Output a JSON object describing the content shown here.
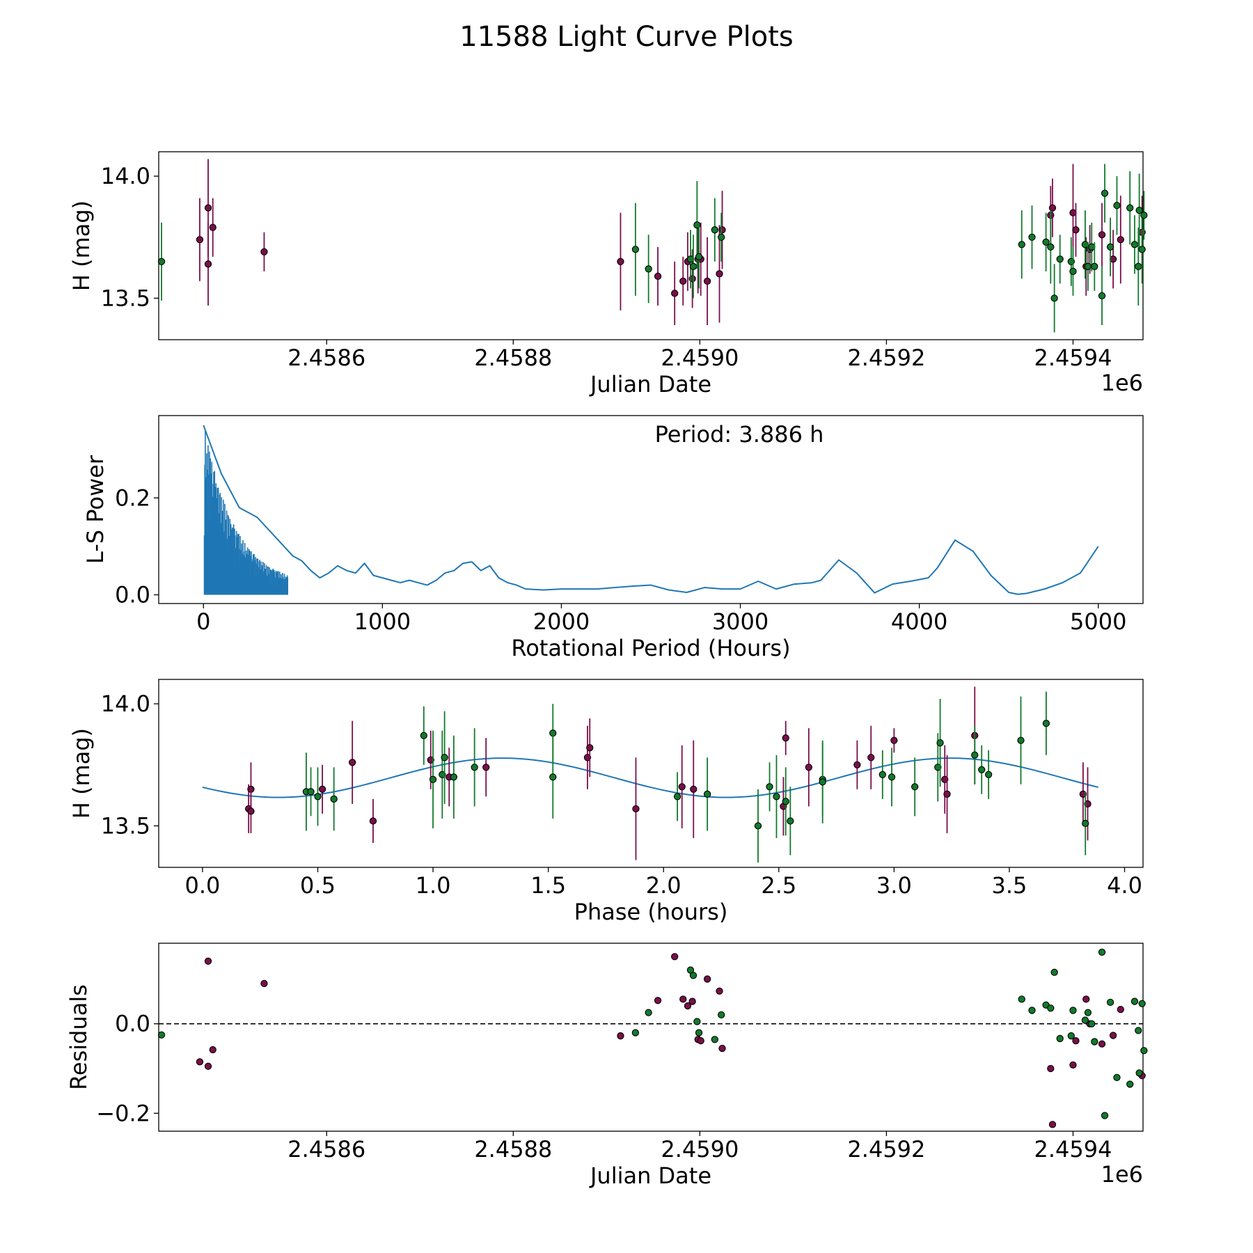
{
  "figure": {
    "suptitle": "11588 Light Curve Plots"
  },
  "colors": {
    "maroon": "#7a0e4a",
    "green": "#127a2c",
    "line": "#1f77b4",
    "edge": "#000000"
  },
  "chart_data": [
    {
      "type": "scatter",
      "id": "light-curve",
      "title": "",
      "xlabel": "Julian Date",
      "ylabel": "H (mag)",
      "offset_label": "1e6",
      "xlim": [
        2458420,
        2459475
      ],
      "ylim": [
        13.33,
        14.1
      ],
      "xticks": [
        2458600,
        2458800,
        2459000,
        2459200,
        2459400
      ],
      "xtick_labels": [
        "2.4586",
        "2.4588",
        "2.4590",
        "2.4592",
        "2.4594"
      ],
      "yticks": [
        13.5,
        14.0
      ],
      "ytick_labels": [
        "13.5",
        "14.0"
      ],
      "series": [
        {
          "name": "maroon",
          "color": "maroon",
          "points": [
            [
              2458464,
              13.74,
              0.17
            ],
            [
              2458473,
              13.87,
              0.2
            ],
            [
              2458473,
              13.64,
              0.17
            ],
            [
              2458478,
              13.79,
              0.12
            ],
            [
              2458533,
              13.69,
              0.08
            ],
            [
              2458915,
              13.65,
              0.2
            ],
            [
              2458955,
              13.59,
              0.12
            ],
            [
              2458973,
              13.52,
              0.13
            ],
            [
              2458982,
              13.57,
              0.1
            ],
            [
              2458987,
              13.65,
              0.12
            ],
            [
              2458992,
              13.58,
              0.12
            ],
            [
              2458998,
              13.66,
              0.14
            ],
            [
              2459001,
              13.66,
              0.15
            ],
            [
              2459008,
              13.57,
              0.18
            ],
            [
              2459021,
              13.6,
              0.2
            ],
            [
              2459024,
              13.78,
              0.16
            ],
            [
              2459376,
              13.84,
              0.12
            ],
            [
              2459378,
              13.87,
              0.12
            ],
            [
              2459400,
              13.85,
              0.2
            ],
            [
              2459403,
              13.78,
              0.11
            ],
            [
              2459414,
              13.63,
              0.12
            ],
            [
              2459418,
              13.7,
              0.1
            ],
            [
              2459431,
              13.76,
              0.13
            ],
            [
              2459443,
              13.66,
              0.12
            ],
            [
              2459451,
              13.74,
              0.18
            ],
            [
              2459474,
              13.77,
              0.15
            ]
          ]
        },
        {
          "name": "green",
          "color": "green",
          "points": [
            [
              2458423,
              13.65,
              0.16
            ],
            [
              2458931,
              13.7,
              0.19
            ],
            [
              2458945,
              13.62,
              0.14
            ],
            [
              2458990,
              13.66,
              0.12
            ],
            [
              2458993,
              13.63,
              0.13
            ],
            [
              2458997,
              13.8,
              0.18
            ],
            [
              2458999,
              13.67,
              0.13
            ],
            [
              2459016,
              13.78,
              0.13
            ],
            [
              2459023,
              13.75,
              0.1
            ],
            [
              2459345,
              13.72,
              0.14
            ],
            [
              2459356,
              13.75,
              0.13
            ],
            [
              2459371,
              13.73,
              0.12
            ],
            [
              2459376,
              13.71,
              0.15
            ],
            [
              2459380,
              13.5,
              0.14
            ],
            [
              2459386,
              13.66,
              0.1
            ],
            [
              2459398,
              13.65,
              0.1
            ],
            [
              2459400,
              13.61,
              0.1
            ],
            [
              2459413,
              13.72,
              0.14
            ],
            [
              2459416,
              13.63,
              0.1
            ],
            [
              2459420,
              13.71,
              0.1
            ],
            [
              2459423,
              13.63,
              0.1
            ],
            [
              2459431,
              13.51,
              0.12
            ],
            [
              2459434,
              13.93,
              0.12
            ],
            [
              2459440,
              13.71,
              0.12
            ],
            [
              2459447,
              13.88,
              0.12
            ],
            [
              2459461,
              13.87,
              0.15
            ],
            [
              2459466,
              13.72,
              0.12
            ],
            [
              2459470,
              13.63,
              0.16
            ],
            [
              2459471,
              13.86,
              0.15
            ],
            [
              2459474,
              13.7,
              0.14
            ],
            [
              2459476,
              13.84,
              0.1
            ]
          ]
        }
      ]
    },
    {
      "type": "line",
      "id": "periodogram",
      "title": "",
      "xlabel": "Rotational Period (Hours)",
      "ylabel": "L-S Power",
      "annotation": "Period: 3.886 h",
      "xlim": [
        -250,
        5250
      ],
      "ylim": [
        -0.018,
        0.37
      ],
      "xticks": [
        0,
        1000,
        2000,
        3000,
        4000,
        5000
      ],
      "xtick_labels": [
        "0",
        "1000",
        "2000",
        "3000",
        "4000",
        "5000"
      ],
      "yticks": [
        0.0,
        0.2
      ],
      "ytick_labels": [
        "0.0",
        "0.2"
      ],
      "x": [
        0,
        100,
        200,
        300,
        400,
        500,
        550,
        600,
        650,
        700,
        750,
        800,
        850,
        900,
        950,
        1000,
        1050,
        1100,
        1150,
        1200,
        1250,
        1300,
        1350,
        1400,
        1450,
        1500,
        1550,
        1600,
        1650,
        1700,
        1750,
        1800,
        1900,
        2000,
        2100,
        2200,
        2300,
        2400,
        2500,
        2600,
        2700,
        2800,
        2900,
        3000,
        3100,
        3200,
        3300,
        3400,
        3450,
        3550,
        3650,
        3750,
        3850,
        3950,
        4050,
        4100,
        4200,
        4300,
        4400,
        4500,
        4550,
        4600,
        4700,
        4800,
        4900,
        5000
      ],
      "y": [
        0.35,
        0.25,
        0.18,
        0.16,
        0.12,
        0.08,
        0.07,
        0.05,
        0.035,
        0.045,
        0.06,
        0.05,
        0.045,
        0.065,
        0.04,
        0.035,
        0.03,
        0.025,
        0.03,
        0.025,
        0.02,
        0.03,
        0.045,
        0.05,
        0.065,
        0.068,
        0.05,
        0.06,
        0.035,
        0.025,
        0.02,
        0.012,
        0.01,
        0.012,
        0.012,
        0.012,
        0.015,
        0.018,
        0.02,
        0.01,
        0.005,
        0.015,
        0.012,
        0.012,
        0.028,
        0.012,
        0.022,
        0.025,
        0.03,
        0.072,
        0.045,
        0.004,
        0.022,
        0.028,
        0.035,
        0.055,
        0.113,
        0.09,
        0.04,
        0.005,
        0.001,
        0.003,
        0.012,
        0.025,
        0.045,
        0.1
      ]
    },
    {
      "type": "scatter",
      "id": "phase-fold",
      "title": "",
      "xlabel": "Phase (hours)",
      "ylabel": "H (mag)",
      "xlim": [
        -0.19,
        4.08
      ],
      "ylim": [
        13.33,
        14.1
      ],
      "xticks": [
        0.0,
        0.5,
        1.0,
        1.5,
        2.0,
        2.5,
        3.0,
        3.5,
        4.0
      ],
      "xtick_labels": [
        "0.0",
        "0.5",
        "1.0",
        "1.5",
        "2.0",
        "2.5",
        "3.0",
        "3.5",
        "4.0"
      ],
      "yticks": [
        13.5,
        14.0
      ],
      "ytick_labels": [
        "13.5",
        "14.0"
      ],
      "model": {
        "mean": 13.697,
        "amp": 0.0805,
        "period": 3.886,
        "x0": 0.33
      },
      "series": [
        {
          "name": "maroon",
          "color": "maroon",
          "points": [
            [
              0.2,
              13.57,
              0.1
            ],
            [
              0.21,
              13.65,
              0.11
            ],
            [
              0.21,
              13.56,
              0.09
            ],
            [
              0.52,
              13.65,
              0.1
            ],
            [
              0.65,
              13.76,
              0.17
            ],
            [
              0.74,
              13.52,
              0.09
            ],
            [
              0.99,
              13.77,
              0.12
            ],
            [
              1.07,
              13.7,
              0.12
            ],
            [
              1.23,
              13.74,
              0.12
            ],
            [
              1.67,
              13.78,
              0.13
            ],
            [
              1.68,
              13.82,
              0.12
            ],
            [
              1.88,
              13.57,
              0.21
            ],
            [
              2.08,
              13.66,
              0.17
            ],
            [
              2.13,
              13.65,
              0.2
            ],
            [
              2.52,
              13.58,
              0.12
            ],
            [
              2.53,
              13.86,
              0.07
            ],
            [
              2.63,
              13.74,
              0.16
            ],
            [
              2.84,
              13.75,
              0.1
            ],
            [
              2.9,
              13.78,
              0.13
            ],
            [
              3.0,
              13.85,
              0.05
            ],
            [
              3.22,
              13.69,
              0.14
            ],
            [
              3.23,
              13.63,
              0.16
            ],
            [
              3.35,
              13.87,
              0.2
            ],
            [
              3.82,
              13.63,
              0.13
            ],
            [
              3.84,
              13.59,
              0.15
            ]
          ]
        },
        {
          "name": "green",
          "color": "green",
          "points": [
            [
              0.45,
              13.64,
              0.16
            ],
            [
              0.47,
              13.64,
              0.1
            ],
            [
              0.5,
              13.62,
              0.12
            ],
            [
              0.57,
              13.61,
              0.13
            ],
            [
              0.96,
              13.87,
              0.12
            ],
            [
              1.0,
              13.69,
              0.2
            ],
            [
              1.04,
              13.71,
              0.18
            ],
            [
              1.05,
              13.78,
              0.19
            ],
            [
              1.09,
              13.7,
              0.17
            ],
            [
              1.18,
              13.74,
              0.16
            ],
            [
              1.52,
              13.88,
              0.12
            ],
            [
              1.52,
              13.7,
              0.17
            ],
            [
              2.06,
              13.62,
              0.1
            ],
            [
              2.19,
              13.63,
              0.15
            ],
            [
              2.41,
              13.5,
              0.15
            ],
            [
              2.46,
              13.66,
              0.1
            ],
            [
              2.49,
              13.62,
              0.17
            ],
            [
              2.53,
              13.6,
              0.14
            ],
            [
              2.55,
              13.52,
              0.14
            ],
            [
              2.69,
              13.69,
              0.15
            ],
            [
              2.69,
              13.68,
              0.17
            ],
            [
              2.95,
              13.71,
              0.1
            ],
            [
              2.99,
              13.7,
              0.12
            ],
            [
              3.09,
              13.66,
              0.12
            ],
            [
              3.19,
              13.74,
              0.14
            ],
            [
              3.2,
              13.84,
              0.18
            ],
            [
              3.35,
              13.79,
              0.12
            ],
            [
              3.38,
              13.73,
              0.1
            ],
            [
              3.41,
              13.71,
              0.1
            ],
            [
              3.55,
              13.85,
              0.18
            ],
            [
              3.66,
              13.92,
              0.13
            ],
            [
              3.83,
              13.51,
              0.13
            ]
          ]
        }
      ]
    },
    {
      "type": "scatter",
      "id": "residuals",
      "title": "",
      "xlabel": "Julian Date",
      "ylabel": "Residuals",
      "offset_label": "1e6",
      "xlim": [
        2458420,
        2459475
      ],
      "ylim": [
        -0.24,
        0.18
      ],
      "reference_line": 0.0,
      "xticks": [
        2458600,
        2458800,
        2459000,
        2459200,
        2459400
      ],
      "xtick_labels": [
        "2.4586",
        "2.4588",
        "2.4590",
        "2.4592",
        "2.4594"
      ],
      "yticks": [
        -0.2,
        0.0
      ],
      "ytick_labels": [
        "−0.2",
        "0.0"
      ],
      "series": [
        {
          "name": "maroon",
          "color": "maroon",
          "points": [
            [
              2458464,
              -0.085
            ],
            [
              2458473,
              0.14
            ],
            [
              2458473,
              -0.095
            ],
            [
              2458478,
              -0.058
            ],
            [
              2458533,
              0.09
            ],
            [
              2458915,
              -0.027
            ],
            [
              2458955,
              0.052
            ],
            [
              2458973,
              0.15
            ],
            [
              2458982,
              0.055
            ],
            [
              2458987,
              0.04
            ],
            [
              2458992,
              0.05
            ],
            [
              2458998,
              -0.035
            ],
            [
              2459001,
              -0.038
            ],
            [
              2459008,
              0.1
            ],
            [
              2459021,
              0.073
            ],
            [
              2459024,
              -0.055
            ],
            [
              2459376,
              -0.1
            ],
            [
              2459378,
              -0.225
            ],
            [
              2459400,
              -0.092
            ],
            [
              2459403,
              -0.038
            ],
            [
              2459414,
              0.055
            ],
            [
              2459418,
              0.0
            ],
            [
              2459431,
              -0.045
            ],
            [
              2459443,
              -0.026
            ],
            [
              2459451,
              0.032
            ],
            [
              2459474,
              -0.116
            ]
          ]
        },
        {
          "name": "green",
          "color": "green",
          "points": [
            [
              2458423,
              -0.025
            ],
            [
              2458931,
              -0.02
            ],
            [
              2458945,
              0.025
            ],
            [
              2458990,
              0.12
            ],
            [
              2458993,
              0.108
            ],
            [
              2458997,
              0.005
            ],
            [
              2458999,
              -0.02
            ],
            [
              2459016,
              -0.035
            ],
            [
              2459023,
              0.02
            ],
            [
              2459345,
              0.055
            ],
            [
              2459356,
              0.03
            ],
            [
              2459371,
              0.042
            ],
            [
              2459376,
              0.035
            ],
            [
              2459380,
              0.115
            ],
            [
              2459386,
              -0.033
            ],
            [
              2459398,
              -0.027
            ],
            [
              2459400,
              0.03
            ],
            [
              2459413,
              0.008
            ],
            [
              2459416,
              0.025
            ],
            [
              2459420,
              0.0
            ],
            [
              2459423,
              -0.04
            ],
            [
              2459431,
              0.16
            ],
            [
              2459434,
              -0.205
            ],
            [
              2459440,
              0.048
            ],
            [
              2459447,
              -0.12
            ],
            [
              2459461,
              -0.135
            ],
            [
              2459466,
              0.05
            ],
            [
              2459470,
              -0.015
            ],
            [
              2459471,
              -0.11
            ],
            [
              2459474,
              0.045
            ],
            [
              2459476,
              -0.06
            ]
          ]
        }
      ]
    }
  ]
}
